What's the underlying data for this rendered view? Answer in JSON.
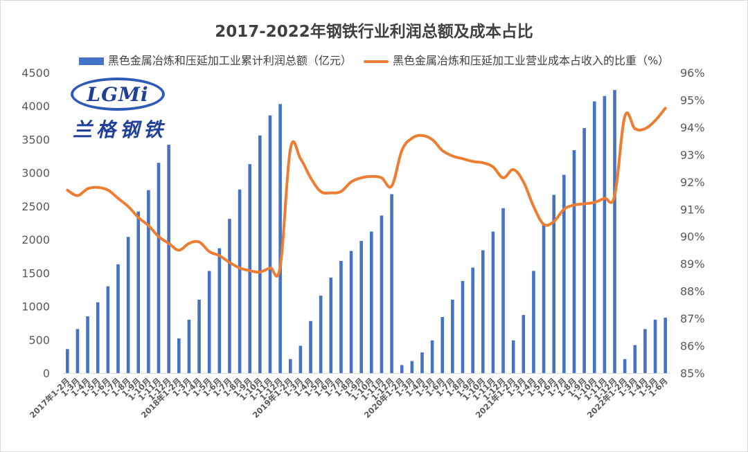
{
  "chart_data": {
    "type": "bar+line",
    "title": "2017-2022年钢铁行业利润总额及成本占比",
    "legend": {
      "bar_label": "黑色金属冶炼和压延加工业累计利润总额（亿元）",
      "line_label": "黑色金属冶炼和压延加工业营业成本占收入的比重（%）",
      "position": "top"
    },
    "grid": false,
    "y_left": {
      "min": 0,
      "max": 4500,
      "step": 500,
      "ticks": [
        "0",
        "500",
        "1000",
        "1500",
        "2000",
        "2500",
        "3000",
        "3500",
        "4000",
        "4500"
      ]
    },
    "y_right": {
      "min": 85,
      "max": 96,
      "step": 1,
      "ticks": [
        "85%",
        "86%",
        "87%",
        "88%",
        "89%",
        "90%",
        "91%",
        "92%",
        "93%",
        "94%",
        "95%",
        "96%"
      ]
    },
    "categories": [
      "2017年1-2月",
      "1-3月",
      "1-4月",
      "1-5月",
      "1-6月",
      "1-7月",
      "1-8月",
      "1-9月",
      "1-10月",
      "1-11月",
      "1-12月",
      "2018年1-2月",
      "1-3月",
      "1-4月",
      "1-5月",
      "1-6月",
      "1-7月",
      "1-8月",
      "1-9月",
      "1-10月",
      "1-11月",
      "1-12月",
      "2019年1-2月",
      "1-3月",
      "1-4月",
      "1-5月",
      "1-6月",
      "1-7月",
      "1-8月",
      "1-9月",
      "1-10月",
      "1-11月",
      "1-12月",
      "2020年1-2月",
      "1-3月",
      "1-4月",
      "1-5月",
      "1-6月",
      "1-7月",
      "1-8月",
      "1-9月",
      "1-10月",
      "1-11月",
      "1-12月",
      "2021年1-2月",
      "1-3月",
      "1-4月",
      "1-5月",
      "1-6月",
      "1-7月",
      "1-8月",
      "1-9月",
      "1-10月",
      "1-11月",
      "1-12月",
      "2022年1-2月",
      "1-3月",
      "1-4月",
      "1-5月",
      "1-6月"
    ],
    "bar_series": {
      "values": [
        360,
        660,
        850,
        1060,
        1300,
        1630,
        2040,
        2420,
        2740,
        3150,
        3420,
        520,
        800,
        1100,
        1530,
        1870,
        2310,
        2750,
        3130,
        3560,
        3860,
        4030,
        210,
        410,
        780,
        1160,
        1430,
        1680,
        1830,
        1980,
        2120,
        2360,
        2680,
        120,
        180,
        310,
        490,
        840,
        1100,
        1380,
        1580,
        1840,
        2120,
        2470,
        490,
        870,
        1530,
        2230,
        2670,
        2970,
        3340,
        3670,
        4070,
        4150,
        4240,
        210,
        420,
        660,
        800,
        830
      ]
    },
    "line_series": {
      "values": [
        91.7,
        91.5,
        91.75,
        91.8,
        91.7,
        91.4,
        91.1,
        90.7,
        90.4,
        90.0,
        89.75,
        89.5,
        89.75,
        89.8,
        89.45,
        89.3,
        89.05,
        88.85,
        88.75,
        88.7,
        88.85,
        88.9,
        93.2,
        92.85,
        92.15,
        91.65,
        91.6,
        91.65,
        92.0,
        92.15,
        92.2,
        92.15,
        91.85,
        93.15,
        93.6,
        93.7,
        93.55,
        93.15,
        92.95,
        92.85,
        92.75,
        92.7,
        92.55,
        92.15,
        92.45,
        92.0,
        91.1,
        90.45,
        90.55,
        91.0,
        91.15,
        91.2,
        91.25,
        91.4,
        91.5,
        94.4,
        93.95,
        93.95,
        94.25,
        94.7
      ]
    },
    "colors": {
      "bar": "#4472c4",
      "line": "#ed7d31",
      "axis_text": "#595959",
      "title": "#404040",
      "logo": "#1f3f9a"
    }
  },
  "logo": {
    "mark": "LGMi",
    "subtitle": "兰格钢铁"
  }
}
